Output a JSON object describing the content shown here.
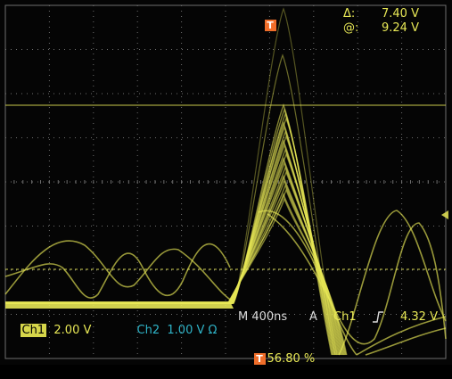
{
  "colors": {
    "background": "#050505",
    "grid": "#6f6f6f",
    "ch1": "#e8e856",
    "ch2": "#2fb4c8",
    "trigger": "#f06e2a",
    "cursor": "#c9c94a"
  },
  "icons": {
    "trigger_marker": "T",
    "edge_rising": "rising-edge-icon",
    "level_arrow": "trigger-level-arrow-icon"
  },
  "cursor_readout": {
    "delta_label": "Δ:",
    "delta_value": "7.40 V",
    "at_label": "@:",
    "at_value": "9.24 V"
  },
  "bottom_bar": {
    "ch1_label": "Ch1",
    "ch1_scale": "2.00 V",
    "ch2_label": "Ch2",
    "ch2_scale": "1.00 V Ω",
    "timebase": "M 400ns",
    "trig_glyph": "A",
    "trig_source": "Ch1",
    "trig_level": "4.32 V"
  },
  "trigger_position": {
    "marker": "T",
    "value": "56.80 %"
  }
}
